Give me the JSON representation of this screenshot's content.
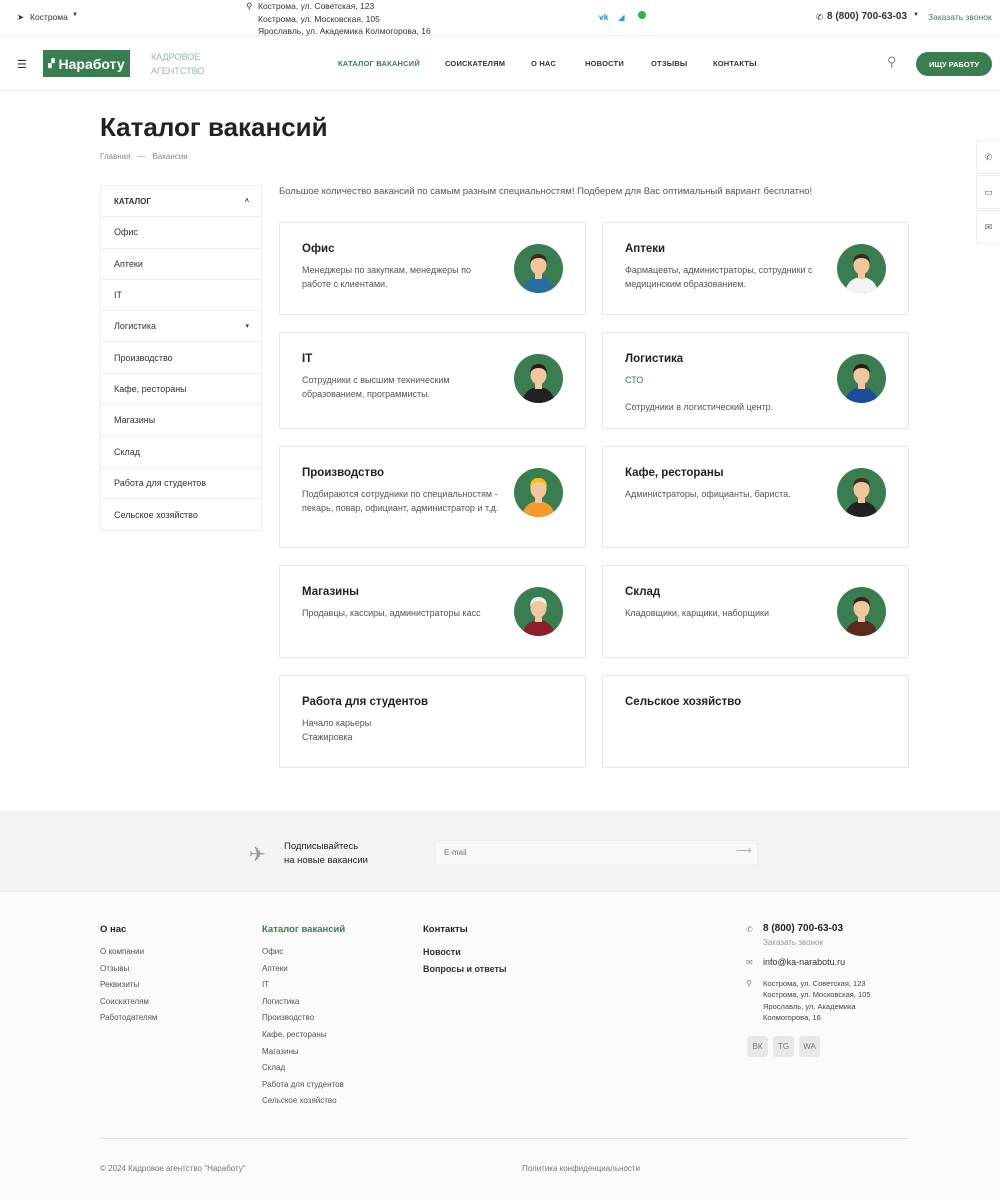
{
  "topbar": {
    "city": "Кострома",
    "addresses": [
      "Кострома, ул. Советская, 123",
      "Кострома, ул. Московская, 105",
      "Ярославль, ул. Академика Колмогорова, 16"
    ],
    "social": [
      "vk",
      "telegram",
      "whatsapp"
    ],
    "phone": "8 (800) 700-63-03",
    "callback": "Заказать звонок"
  },
  "nav": {
    "logo": "Наработу",
    "agency_line1": "КАДРОВОЕ",
    "agency_line2": "АГЕНТСТВО",
    "items": [
      "КАТАЛОГ ВАКАНСИЙ",
      "СОИСКАТЕЛЯМ",
      "О НАС",
      "НОВОСТИ",
      "ОТЗЫВЫ",
      "КОНТАКТЫ"
    ],
    "cta": "ИЩУ РАБОТУ",
    "accent": "#3a7d51"
  },
  "page": {
    "title": "Каталог вакансий",
    "breadcrumbs": [
      "Главная",
      "Вакансии"
    ],
    "intro": "Большое количество вакансий по самым разным специальностям! Подберем для Вас оптимальный вариант бесплатно!"
  },
  "sidebar": {
    "header": "КАТАЛОГ",
    "items": [
      "Офис",
      "Аптеки",
      "IT",
      "Логистика",
      "Производство",
      "Кафе, рестораны",
      "Магазины",
      "Склад",
      "Работа для студентов",
      "Сельское хозяйство"
    ]
  },
  "cards": [
    {
      "title": "Офис",
      "lines": [
        "Менеджеры по закупкам, менеджеры по работе с клиентами."
      ],
      "icon": "office-worker-avatar"
    },
    {
      "title": "Аптеки",
      "lines": [
        "Фармацевты, администраторы, сотрудники с медицинским образованием."
      ],
      "icon": "doctor-avatar"
    },
    {
      "title": "IT",
      "lines": [
        "Сотрудники с высшим техническим образованием, программисты."
      ],
      "icon": "programmer-avatar"
    },
    {
      "title": "Логистика",
      "tag": "СТО",
      "lines": [
        "Сотрудники в логистический центр."
      ],
      "icon": "logistics-worker-avatar"
    },
    {
      "title": "Производство",
      "lines": [
        "Подбираются сотрудники по специальностям - пекарь, повар, официант, администратор и т.д."
      ],
      "icon": "builder-avatar"
    },
    {
      "title": "Кафе, рестораны",
      "lines": [
        "Администраторы, официанты, бариста."
      ],
      "icon": "waiter-avatar"
    },
    {
      "title": "Магазины",
      "lines": [
        "Продавцы, кассиры, администраторы касс"
      ],
      "icon": "seller-avatar"
    },
    {
      "title": "Склад",
      "lines": [
        "Кладовщики, карщики, наборщики"
      ],
      "icon": "warehouse-worker-avatar"
    },
    {
      "title": "Работа для студентов",
      "lines": [
        "Начало карьеры",
        "Стажировка"
      ]
    },
    {
      "title": "Сельское хозяйство",
      "lines": []
    }
  ],
  "subscribe": {
    "line1": "Подписывайтесь",
    "line2": "на новые вакансии",
    "placeholder": "E-mail"
  },
  "footer": {
    "about": {
      "title": "О нас",
      "links": [
        "О компании",
        "Отзывы",
        "Реквизиты",
        "Соискателям",
        "Работодателям"
      ]
    },
    "catalog": {
      "title": "Каталог вакансий",
      "links": [
        "Офис",
        "Аптеки",
        "IT",
        "Логистика",
        "Производство",
        "Кафе, рестораны",
        "Магазины",
        "Склад",
        "Работа для студентов",
        "Сельское хозяйство"
      ]
    },
    "contacts": {
      "title": "Контакты",
      "links": [
        "Новости",
        "Вопросы и ответы"
      ]
    },
    "phone": "8 (800) 700-63-03",
    "callback": "Заказать звонок",
    "email": "info@ka-narabotu.ru",
    "addresses": [
      "Кострома, ул. Советская, 123",
      "Кострома, ул. Московская, 105",
      "Ярославль, ул. Академика",
      "Колмогорова, 16"
    ],
    "social": [
      "ВК",
      "TG",
      "WA"
    ],
    "copyright": "© 2024 Кадровое агентство \"Наработу\"",
    "privacy": "Политика конфиденциальности"
  }
}
